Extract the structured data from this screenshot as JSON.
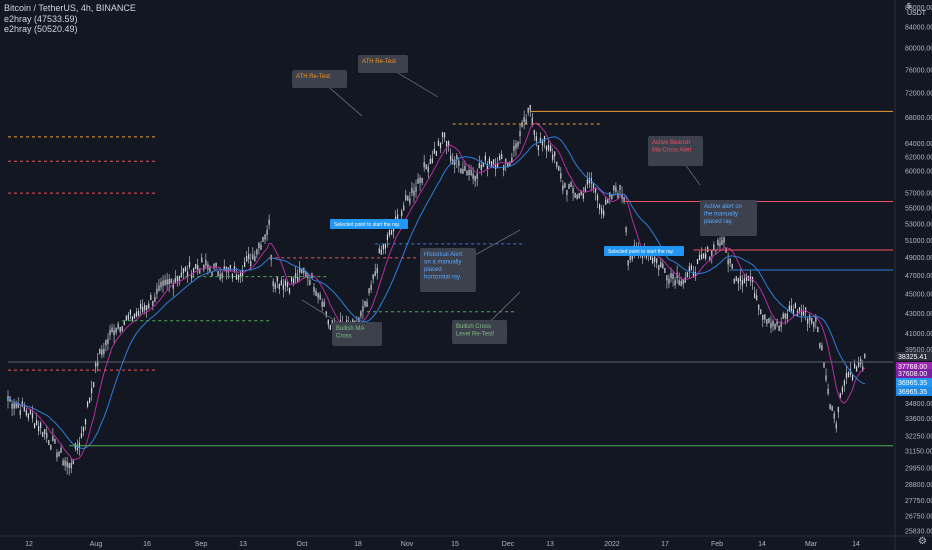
{
  "header": {
    "title": "Bitcoin / TetherUS, 4h, BINANCE",
    "indicator_1": "e2hray (47533.59)",
    "indicator_2": "e2hray (50520.49)",
    "currency": "USDT",
    "currency_prefix": "$"
  },
  "colors": {
    "background": "#131722",
    "price": "#d1d4dc",
    "ma_fast": "#b52d9f",
    "ma_slow": "#2f7ddb",
    "ath_ray": "#f0a030",
    "bearish_ray": "#f05060",
    "ray_blue": "#2f7ddb",
    "support_green": "#4caf50",
    "callout_bg": "#3d414d",
    "callout_orange": "#f7931a",
    "callout_red": "#f04d5c",
    "callout_blue": "#5aa8ff",
    "callout_green": "#7fbf7f",
    "callout_gray": "#b2b5be",
    "tag_blue": "#2196f3"
  },
  "chart_data": {
    "type": "candlestick",
    "title": "Bitcoin / TetherUS, 4h, BINANCE",
    "x_ticks": [
      "12",
      "Aug",
      "16",
      "Sep",
      "13",
      "Oct",
      "18",
      "Nov",
      "15",
      "Dec",
      "13",
      "2022",
      "17",
      "Feb",
      "14",
      "Mar",
      "14"
    ],
    "y_ticks": [
      25830,
      26750,
      27750,
      28800,
      29950,
      31150,
      32250,
      33600,
      34800,
      36300,
      37700,
      39500,
      41000,
      43000,
      45000,
      47000,
      49000,
      51000,
      53000,
      55000,
      57000,
      60000,
      62000,
      64000,
      68000,
      72000,
      76000,
      80000,
      84000,
      88000
    ],
    "y_scale": "log",
    "ylim": [
      25500,
      89000
    ],
    "price_path": [
      {
        "t": "Jul 5",
        "p": 35200
      },
      {
        "t": "Jul 10",
        "p": 34000
      },
      {
        "t": "Jul 14",
        "p": 32500
      },
      {
        "t": "Jul 20",
        "p": 29900
      },
      {
        "t": "Jul 23",
        "p": 32200
      },
      {
        "t": "Jul 27",
        "p": 38500
      },
      {
        "t": "Jul 31",
        "p": 41500
      },
      {
        "t": "Aug 6",
        "p": 43000
      },
      {
        "t": "Aug 12",
        "p": 45500
      },
      {
        "t": "Aug 16",
        "p": 47000
      },
      {
        "t": "Aug 21",
        "p": 48000
      },
      {
        "t": "Aug 25",
        "p": 47500
      },
      {
        "t": "Aug 30",
        "p": 47200
      },
      {
        "t": "Sep 3",
        "p": 49000
      },
      {
        "t": "Sep 7",
        "p": 52700
      },
      {
        "t": "Sep 8",
        "p": 46500
      },
      {
        "t": "Sep 12",
        "p": 46000
      },
      {
        "t": "Sep 16",
        "p": 47500
      },
      {
        "t": "Sep 20",
        "p": 44500
      },
      {
        "t": "Sep 22",
        "p": 41500
      },
      {
        "t": "Sep 28",
        "p": 41500
      },
      {
        "t": "Oct 1",
        "p": 43800
      },
      {
        "t": "Oct 4",
        "p": 49000
      },
      {
        "t": "Oct 10",
        "p": 55000
      },
      {
        "t": "Oct 15",
        "p": 60000
      },
      {
        "t": "Oct 20",
        "p": 65000
      },
      {
        "t": "Oct 22",
        "p": 61500
      },
      {
        "t": "Oct 27",
        "p": 59500
      },
      {
        "t": "Oct 31",
        "p": 61500
      },
      {
        "t": "Nov 5",
        "p": 61200
      },
      {
        "t": "Nov 8",
        "p": 66000
      },
      {
        "t": "Nov 10",
        "p": 68900
      },
      {
        "t": "Nov 12",
        "p": 64000
      },
      {
        "t": "Nov 15",
        "p": 63500
      },
      {
        "t": "Nov 18",
        "p": 58000
      },
      {
        "t": "Nov 22",
        "p": 56500
      },
      {
        "t": "Nov 25",
        "p": 58500
      },
      {
        "t": "Nov 28",
        "p": 54500
      },
      {
        "t": "Dec 1",
        "p": 57500
      },
      {
        "t": "Dec 3",
        "p": 56500
      },
      {
        "t": "Dec 4",
        "p": 49000
      },
      {
        "t": "Dec 8",
        "p": 50000
      },
      {
        "t": "Dec 14",
        "p": 47000
      },
      {
        "t": "Dec 18",
        "p": 46500
      },
      {
        "t": "Dec 22",
        "p": 48500
      },
      {
        "t": "Dec 27",
        "p": 51000
      },
      {
        "t": "Dec 30",
        "p": 47000
      },
      {
        "t": "Jan 3",
        "p": 46500
      },
      {
        "t": "Jan 6",
        "p": 43000
      },
      {
        "t": "Jan 10",
        "p": 41500
      },
      {
        "t": "Jan 13",
        "p": 43500
      },
      {
        "t": "Jan 16",
        "p": 43000
      },
      {
        "t": "Jan 19",
        "p": 42000
      },
      {
        "t": "Jan 21",
        "p": 38500
      },
      {
        "t": "Jan 22",
        "p": 35500
      },
      {
        "t": "Jan 24",
        "p": 33500
      },
      {
        "t": "Jan 26",
        "p": 37000
      },
      {
        "t": "Jan 28",
        "p": 37500
      },
      {
        "t": "Jan 31",
        "p": 38325
      }
    ],
    "price_labels": [
      {
        "value": "38325.41",
        "color": "#2a2e39"
      },
      {
        "value": "37768.00",
        "color": "#9c27b0"
      },
      {
        "value": "37608.00",
        "color": "#7b1fa2"
      },
      {
        "value": "36965.35",
        "color": "#2196f3"
      },
      {
        "value": "36965.35",
        "color": "#1e88e5"
      }
    ],
    "rays": [
      {
        "price": 68900,
        "from": "Nov 10",
        "color": "#f0a030",
        "style": "solid"
      },
      {
        "price": 55800,
        "from": "Dec 3",
        "color": "#f05060",
        "style": "solid"
      },
      {
        "price": 49800,
        "from": "Dec 20",
        "color": "#f05060",
        "style": "solid"
      },
      {
        "price": 47533.59,
        "from": "Dec 29",
        "color": "#2f7ddb",
        "style": "solid"
      },
      {
        "price": 31500,
        "from": "Jul 20",
        "color": "#4caf50",
        "style": "solid"
      },
      {
        "price": 38325.41,
        "from": "Jul 5",
        "color": "#5d606b",
        "style": "solid"
      },
      {
        "price": 66900,
        "from": "Oct 22",
        "color": "#f0a030",
        "style": "dashed"
      },
      {
        "price": 64900,
        "from": "Jul 5",
        "color": "#f0a030",
        "style": "dashed"
      },
      {
        "price": 61300,
        "from": "Jul 5",
        "color": "#f05060",
        "style": "dashed"
      },
      {
        "price": 56900,
        "from": "Jul 5",
        "color": "#f05060",
        "style": "dashed"
      },
      {
        "price": 50520.49,
        "from": "Oct 3",
        "color": "#2f7ddb",
        "style": "dashed"
      },
      {
        "price": 48900,
        "from": "Sep 7",
        "color": "#f05060",
        "style": "dashed"
      },
      {
        "price": 46800,
        "from": "Aug 16",
        "color": "#4caf50",
        "style": "dashed"
      },
      {
        "price": 43100,
        "from": "Oct 1",
        "color": "#4caf50",
        "style": "dashed"
      },
      {
        "price": 42200,
        "from": "Aug 2",
        "color": "#4caf50",
        "style": "dashed"
      },
      {
        "price": 37600,
        "from": "Jul 5",
        "color": "#f05060",
        "style": "dashed"
      }
    ],
    "annotations": [
      {
        "text": "ATH Re-Test",
        "color": "#f7931a",
        "point": "Oct 22"
      },
      {
        "text": "ATH Re-Test",
        "color": "#f7931a",
        "point": "Nov 10"
      },
      {
        "text": "Active Bearish\nMa-Cross Alert",
        "color": "#f04d5c",
        "point": "Jan 16"
      },
      {
        "text": "Active alert on\nthe manually\nplaced ray.",
        "color": "#5aa8ff",
        "point": "Jan 18"
      },
      {
        "text": "Selected point to start the ray.",
        "color": "#ffffff",
        "tag": true,
        "point": "Oct 22"
      },
      {
        "text": "Selected point to start the ray.",
        "color": "#ffffff",
        "tag": true,
        "point": "Jan 2"
      },
      {
        "text": "Historical Alert\non a manually\nplaced\nhorizontal ray.",
        "color": "#5aa8ff",
        "point": "Nov 3"
      },
      {
        "text": "Bullish MA\nCross",
        "color": "#7fbf7f",
        "point": "Sep 29"
      },
      {
        "text": "Bullish Cross\nLevel Re-Test!",
        "color": "#7fbf7f",
        "point": "Dec 3"
      }
    ]
  }
}
